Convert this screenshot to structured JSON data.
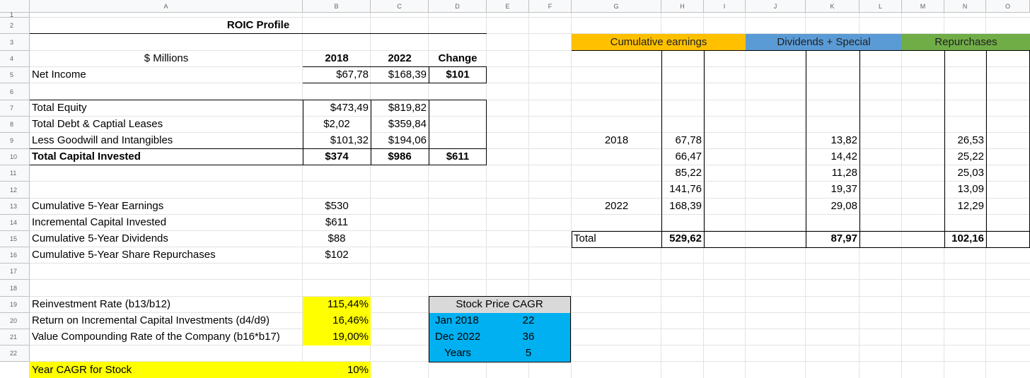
{
  "columns": [
    "A",
    "B",
    "C",
    "D",
    "E",
    "F",
    "G",
    "H",
    "I",
    "J",
    "K",
    "L",
    "M",
    "N",
    "O"
  ],
  "rows": [
    "1",
    "2",
    "3",
    "4",
    "5",
    "6",
    "7",
    "8",
    "9",
    "10",
    "11",
    "12",
    "13",
    "14",
    "15",
    "16",
    "17",
    "18",
    "19",
    "20",
    "21",
    "22"
  ],
  "colors": {
    "yellow": "#ffff00",
    "orange": "#ffc000",
    "blue": "#5b9bd5",
    "green": "#70ad47",
    "cyan": "#00b0f0",
    "gray": "#d9d9d9"
  },
  "roic": {
    "title": "ROIC Profile",
    "header": {
      "unit": "$ Millions",
      "y2018": "2018",
      "y2022": "2022",
      "change": "Change"
    },
    "net_income": {
      "label": "Net Income",
      "v2018": "$67,78",
      "v2022": "$168,39",
      "change": "$101"
    },
    "total_equity": {
      "label": "Total Equity",
      "v2018": "$473,49",
      "v2022": "$819,82"
    },
    "total_debt": {
      "label": "Total Debt & Captial Leases",
      "v2018": "$2,02",
      "v2022": "$359,84"
    },
    "less_goodwill": {
      "label": "Less Goodwill and Intangibles",
      "v2018": "$101,32",
      "v2022": "$194,06"
    },
    "total_capital": {
      "label": "Total Capital Invested",
      "v2018": "$374",
      "v2022": "$986",
      "change": "$611"
    },
    "cum_earnings": {
      "label": "Cumulative 5-Year Earnings",
      "value": "$530"
    },
    "incr_capital": {
      "label": "Incremental Capital Invested",
      "value": "$611"
    },
    "cum_dividends": {
      "label": "Cumulative 5-Year Dividends",
      "value": "$88"
    },
    "cum_repurchases": {
      "label": "Cumulative 5-Year Share Repurchases",
      "value": "$102"
    },
    "reinvestment": {
      "label": "Reinvestment Rate (b13/b12)",
      "value": "115,44%"
    },
    "return_incr": {
      "label": "Return on Incremental Capital Investments (d4/d9)",
      "value": "16,46%"
    },
    "value_comp": {
      "label": "Value Compounding Rate of the Company (b16*b17)",
      "value": "19,00%"
    },
    "year_cagr": {
      "label": "Year CAGR for Stock",
      "value": "10%"
    }
  },
  "stock": {
    "title": "Stock Price CAGR",
    "jan_label": "Jan 2018",
    "jan_value": "22",
    "dec_label": "Dec 2022",
    "dec_value": "36",
    "years_label": "Years",
    "years_value": "5"
  },
  "right": {
    "cum_header": "Cumulative earnings",
    "div_header": "Dividends + Special",
    "rep_header": "Repurchases",
    "year_start": "2018",
    "year_end": "2022",
    "earnings": [
      "67,78",
      "66,47",
      "85,22",
      "141,76",
      "168,39"
    ],
    "dividends": [
      "13,82",
      "14,42",
      "11,28",
      "19,37",
      "29,08"
    ],
    "repurchases": [
      "26,53",
      "25,22",
      "25,03",
      "13,09",
      "12,29"
    ],
    "total_label": "Total",
    "total_earnings": "529,62",
    "total_dividends": "87,97",
    "total_repurchases": "102,16"
  }
}
